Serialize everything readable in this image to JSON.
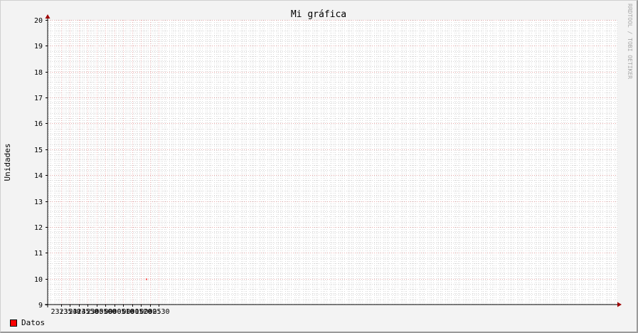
{
  "chart_data": {
    "type": "line",
    "title": "Mi gráfica",
    "ylabel": "Unidades",
    "xlabel": "",
    "watermark": "RRDTOOL / TOBI OETIKER",
    "ylim": [
      9,
      20
    ],
    "y_ticks": [
      9,
      10,
      11,
      12,
      13,
      14,
      15,
      16,
      17,
      18,
      19,
      20
    ],
    "x_range_minutes": [
      -7.5,
      312.5
    ],
    "x_ticks": [
      {
        "t": 0,
        "label": "23:35"
      },
      {
        "t": 5,
        "label": "23:40"
      },
      {
        "t": 10,
        "label": "23:45"
      },
      {
        "t": 15,
        "label": "23:50"
      },
      {
        "t": 20,
        "label": "23:55"
      },
      {
        "t": 25,
        "label": "00:00"
      },
      {
        "t": 30,
        "label": "00:05"
      },
      {
        "t": 35,
        "label": "00:10"
      },
      {
        "t": 40,
        "label": "00:15"
      },
      {
        "t": 45,
        "label": "00:20"
      },
      {
        "t": 50,
        "label": "00:25"
      },
      {
        "t": 55,
        "label": "00:30"
      }
    ],
    "grid": true,
    "legend_position": "bottom-left",
    "series": [
      {
        "name": "Datos",
        "color": "#ff0000",
        "points": [
          {
            "x0": "00:22:46",
            "x1": "00:23:18",
            "y": 10
          }
        ]
      }
    ]
  },
  "colors": {
    "background": "#f3f3f3",
    "canvas": "#ffffff",
    "major_grid": "#e8a8a8",
    "minor_grid": "#d8d8d8",
    "axis": "#000000",
    "arrow": "#a00000",
    "series": "#ff0000"
  }
}
